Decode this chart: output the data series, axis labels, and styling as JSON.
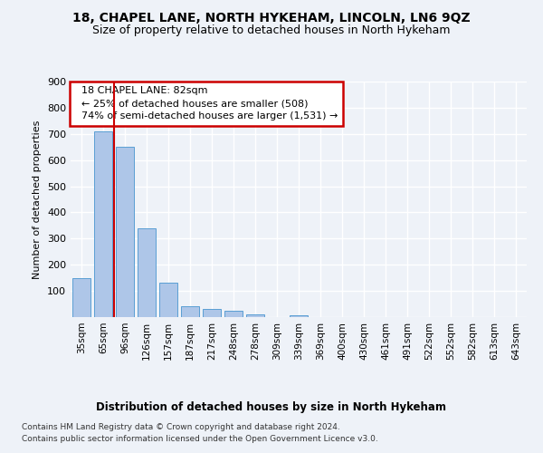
{
  "title": "18, CHAPEL LANE, NORTH HYKEHAM, LINCOLN, LN6 9QZ",
  "subtitle": "Size of property relative to detached houses in North Hykeham",
  "xlabel": "Distribution of detached houses by size in North Hykeham",
  "ylabel": "Number of detached properties",
  "categories": [
    "35sqm",
    "65sqm",
    "96sqm",
    "126sqm",
    "157sqm",
    "187sqm",
    "217sqm",
    "248sqm",
    "278sqm",
    "309sqm",
    "339sqm",
    "369sqm",
    "400sqm",
    "430sqm",
    "461sqm",
    "491sqm",
    "522sqm",
    "552sqm",
    "582sqm",
    "613sqm",
    "643sqm"
  ],
  "values": [
    150,
    710,
    650,
    340,
    130,
    40,
    32,
    25,
    10,
    0,
    8,
    0,
    0,
    0,
    0,
    0,
    0,
    0,
    0,
    0,
    0
  ],
  "bar_color": "#aec6e8",
  "bar_edge_color": "#5a9fd4",
  "property_line_x": 1.5,
  "annotation_text": "  18 CHAPEL LANE: 82sqm\n  ← 25% of detached houses are smaller (508)\n  74% of semi-detached houses are larger (1,531) →",
  "annotation_box_color": "#ffffff",
  "annotation_box_edge": "#cc0000",
  "vline_color": "#cc0000",
  "ylim": [
    0,
    900
  ],
  "yticks": [
    0,
    100,
    200,
    300,
    400,
    500,
    600,
    700,
    800,
    900
  ],
  "footer_line1": "Contains HM Land Registry data © Crown copyright and database right 2024.",
  "footer_line2": "Contains public sector information licensed under the Open Government Licence v3.0.",
  "bg_color": "#eef2f8",
  "plot_bg_color": "#eef2f8",
  "grid_color": "#ffffff"
}
